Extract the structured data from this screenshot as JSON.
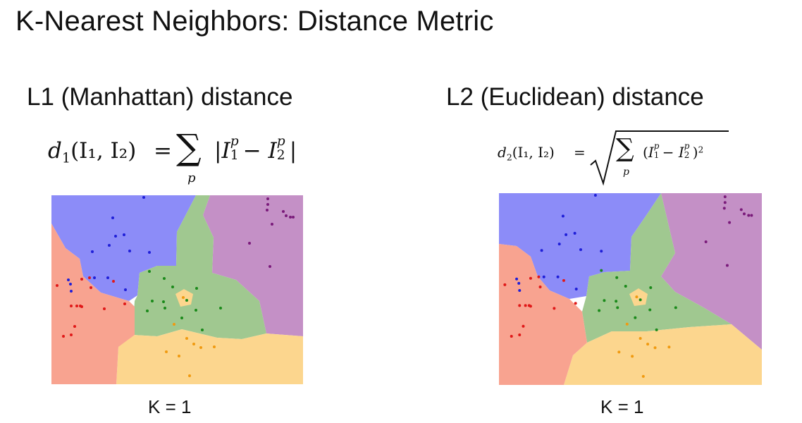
{
  "slide": {
    "title": "K-Nearest Neighbors: Distance Metric"
  },
  "panels": [
    {
      "heading": "L1 (Manhattan) distance",
      "k_label": "K = 1",
      "formula": {
        "lhs": "d",
        "lhs_sub": "1",
        "args": "(I₁, I₂)",
        "equals": "=",
        "sum": "∑",
        "sum_index": "p",
        "term_open": "|",
        "term_a": "I",
        "term_a_sub": "1",
        "term_a_sup": "p",
        "minus": "−",
        "term_b": "I",
        "term_b_sub": "2",
        "term_b_sup": "p",
        "term_close": "|"
      }
    },
    {
      "heading": "L2 (Euclidean) distance",
      "k_label": "K = 1",
      "formula": {
        "lhs": "d",
        "lhs_sub": "2",
        "args": "(I₁, I₂)",
        "equals": "=",
        "sum": "∑",
        "sum_index": "p",
        "term_open": "(",
        "term_a": "I",
        "term_a_sub": "1",
        "term_a_sup": "p",
        "minus": "−",
        "term_b": "I",
        "term_b_sub": "2",
        "term_b_sup": "p",
        "term_close": ")",
        "exponent": "2"
      }
    }
  ],
  "region_colors": {
    "blue": "#8c8cf8",
    "green": "#a0c890",
    "purple": "#c490c6",
    "red": "#f8a390",
    "orange": "#fcd68e"
  },
  "point_colors": {
    "blue": "#1f1fd8",
    "green": "#1a8a1a",
    "purple": "#7a1a7a",
    "red": "#e01818",
    "orange": "#f09a10"
  }
}
